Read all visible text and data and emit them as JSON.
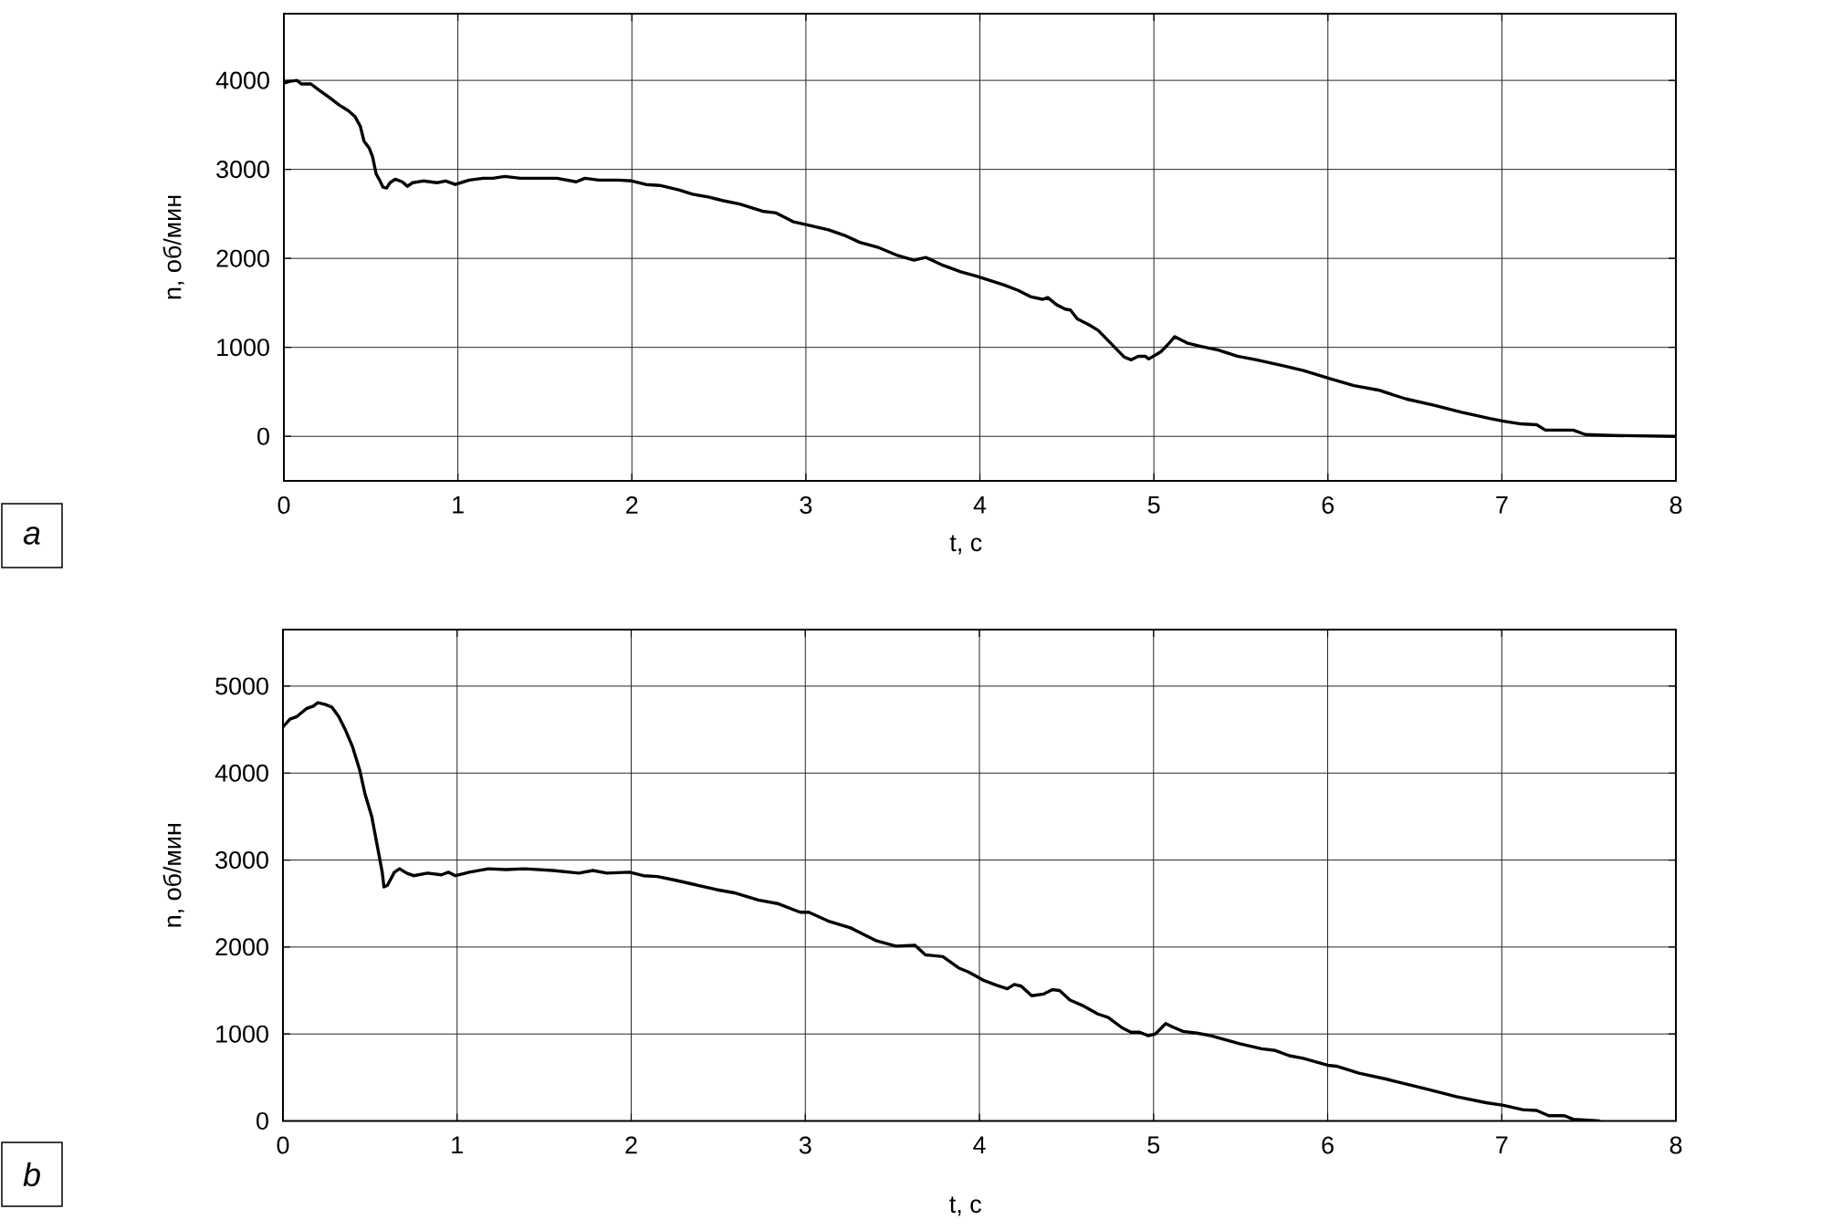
{
  "chart_data": [
    {
      "type": "line",
      "xlabel": "t, с",
      "ylabel": "n, об/мин",
      "annotations": [
        "a"
      ],
      "grid": true,
      "color": "#000000",
      "xlim": [
        0,
        8
      ],
      "ylim": [
        -500,
        4750
      ],
      "xticks": [
        0,
        1,
        2,
        3,
        4,
        5,
        6,
        7,
        8
      ],
      "yticks": [
        0,
        1000,
        2000,
        3000,
        4000
      ],
      "x": [
        0,
        0.035,
        0.075,
        0.1,
        0.155,
        0.21,
        0.26,
        0.32,
        0.37,
        0.41,
        0.44,
        0.46,
        0.49,
        0.51,
        0.53,
        0.55,
        0.57,
        0.59,
        0.61,
        0.64,
        0.68,
        0.71,
        0.74,
        0.8,
        0.88,
        0.93,
        0.985,
        1.065,
        1.145,
        1.2,
        1.27,
        1.36,
        1.47,
        1.57,
        1.68,
        1.73,
        1.81,
        1.92,
        2.0,
        2.08,
        2.16,
        2.27,
        2.35,
        2.44,
        2.52,
        2.62,
        2.75,
        2.83,
        2.93,
        3.0,
        3.13,
        3.22,
        3.31,
        3.42,
        3.53,
        3.62,
        3.69,
        3.79,
        3.89,
        3.98,
        4.06,
        4.14,
        4.22,
        4.29,
        4.36,
        4.39,
        4.44,
        4.49,
        4.52,
        4.56,
        4.63,
        4.68,
        4.73,
        4.79,
        4.83,
        4.87,
        4.91,
        4.95,
        4.97,
        5.04,
        5.08,
        5.12,
        5.19,
        5.27,
        5.37,
        5.48,
        5.59,
        5.75,
        5.86,
        6.01,
        6.15,
        6.29,
        6.45,
        6.61,
        6.77,
        6.93,
        7.01,
        7.11,
        7.2,
        7.25,
        7.41,
        7.48,
        7.63,
        8.0
      ],
      "values": [
        3970,
        3990,
        4000,
        3960,
        3960,
        3880,
        3810,
        3720,
        3660,
        3590,
        3480,
        3320,
        3240,
        3140,
        2950,
        2880,
        2800,
        2790,
        2850,
        2890,
        2860,
        2810,
        2850,
        2870,
        2850,
        2870,
        2830,
        2880,
        2900,
        2900,
        2920,
        2900,
        2900,
        2900,
        2860,
        2900,
        2880,
        2880,
        2870,
        2830,
        2820,
        2770,
        2720,
        2690,
        2650,
        2610,
        2530,
        2510,
        2410,
        2380,
        2320,
        2260,
        2180,
        2120,
        2030,
        1980,
        2010,
        1920,
        1850,
        1800,
        1750,
        1700,
        1640,
        1570,
        1540,
        1560,
        1480,
        1430,
        1420,
        1320,
        1250,
        1190,
        1090,
        970,
        890,
        860,
        900,
        900,
        870,
        950,
        1030,
        1120,
        1050,
        1010,
        970,
        900,
        860,
        790,
        740,
        650,
        570,
        520,
        420,
        350,
        270,
        200,
        170,
        140,
        130,
        70,
        70,
        20,
        10,
        0
      ]
    },
    {
      "type": "line",
      "xlabel": "t, с",
      "ylabel": "n, об/мин",
      "annotations": [
        "b"
      ],
      "grid": true,
      "color": "#000000",
      "xlim": [
        0,
        8
      ],
      "ylim": [
        0,
        5650
      ],
      "xticks": [
        0,
        1,
        2,
        3,
        4,
        5,
        6,
        7,
        8
      ],
      "yticks": [
        0,
        1000,
        2000,
        3000,
        4000,
        5000
      ],
      "x": [
        0,
        0.04,
        0.08,
        0.134,
        0.174,
        0.2,
        0.24,
        0.28,
        0.32,
        0.36,
        0.4,
        0.44,
        0.47,
        0.51,
        0.54,
        0.57,
        0.58,
        0.6,
        0.64,
        0.67,
        0.71,
        0.75,
        0.83,
        0.91,
        0.95,
        0.99,
        1.07,
        1.18,
        1.28,
        1.39,
        1.55,
        1.7,
        1.78,
        1.86,
        1.99,
        2.07,
        2.15,
        2.25,
        2.36,
        2.49,
        2.6,
        2.73,
        2.84,
        2.97,
        3.02,
        3.13,
        3.26,
        3.41,
        3.52,
        3.63,
        3.69,
        3.79,
        3.88,
        3.94,
        4.02,
        4.1,
        4.16,
        4.2,
        4.24,
        4.3,
        4.37,
        4.42,
        4.46,
        4.52,
        4.6,
        4.68,
        4.74,
        4.82,
        4.87,
        4.92,
        4.97,
        5.01,
        5.07,
        5.11,
        5.17,
        5.25,
        5.33,
        5.49,
        5.62,
        5.7,
        5.78,
        5.86,
        6.0,
        6.05,
        6.18,
        6.34,
        6.56,
        6.74,
        6.91,
        7.01,
        7.12,
        7.2,
        7.27,
        7.36,
        7.41,
        7.56
      ],
      "values": [
        4530,
        4620,
        4650,
        4740,
        4770,
        4810,
        4790,
        4760,
        4650,
        4490,
        4300,
        4040,
        3770,
        3500,
        3180,
        2860,
        2690,
        2710,
        2860,
        2900,
        2850,
        2820,
        2850,
        2830,
        2860,
        2820,
        2860,
        2900,
        2890,
        2900,
        2880,
        2850,
        2880,
        2850,
        2860,
        2820,
        2810,
        2770,
        2720,
        2660,
        2620,
        2540,
        2500,
        2400,
        2400,
        2300,
        2220,
        2070,
        2010,
        2020,
        1910,
        1890,
        1760,
        1710,
        1620,
        1560,
        1520,
        1570,
        1550,
        1440,
        1460,
        1510,
        1500,
        1390,
        1320,
        1230,
        1190,
        1070,
        1020,
        1020,
        980,
        1000,
        1120,
        1080,
        1030,
        1010,
        980,
        890,
        830,
        810,
        750,
        720,
        640,
        630,
        550,
        480,
        370,
        280,
        210,
        180,
        130,
        120,
        60,
        60,
        20,
        0
      ]
    }
  ]
}
